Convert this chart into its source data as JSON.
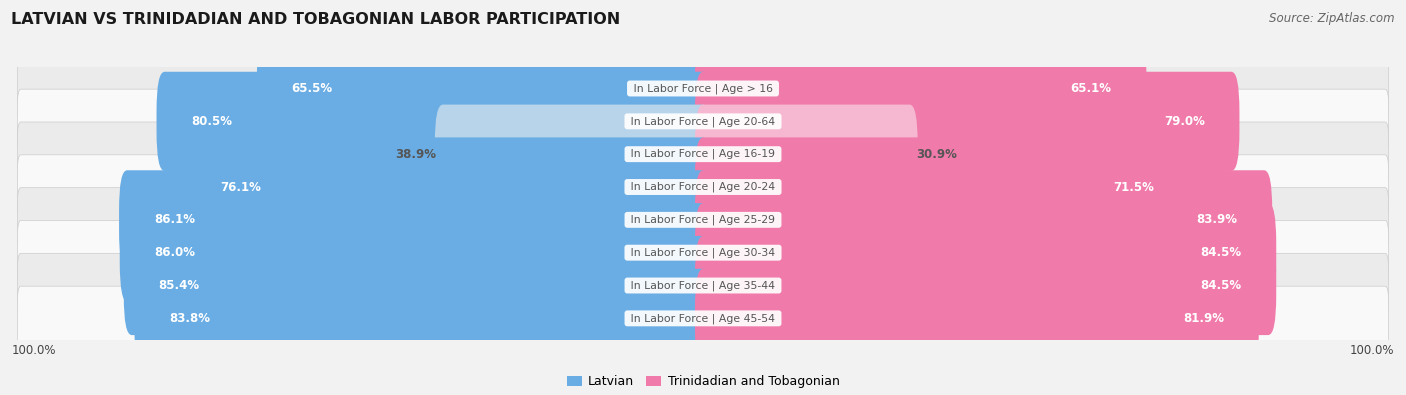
{
  "title": "LATVIAN VS TRINIDADIAN AND TOBAGONIAN LABOR PARTICIPATION",
  "source": "Source: ZipAtlas.com",
  "categories": [
    "In Labor Force | Age > 16",
    "In Labor Force | Age 20-64",
    "In Labor Force | Age 16-19",
    "In Labor Force | Age 20-24",
    "In Labor Force | Age 25-29",
    "In Labor Force | Age 30-34",
    "In Labor Force | Age 35-44",
    "In Labor Force | Age 45-54"
  ],
  "latvian": [
    65.5,
    80.5,
    38.9,
    76.1,
    86.1,
    86.0,
    85.4,
    83.8
  ],
  "trinidadian": [
    65.1,
    79.0,
    30.9,
    71.5,
    83.9,
    84.5,
    84.5,
    81.9
  ],
  "latvian_color": "#6aade4",
  "latvian_color_light": "#b8d4ea",
  "trinidadian_color": "#f07aaa",
  "trinidadian_color_light": "#f5b8d0",
  "label_color_white": "#ffffff",
  "label_color_dark": "#555555",
  "bar_height": 0.62,
  "max_val": 100.0,
  "bg_color": "#f2f2f2",
  "row_bg_even": "#ebebeb",
  "row_bg_odd": "#f9f9f9",
  "title_fontsize": 11.5,
  "source_fontsize": 8.5,
  "legend_fontsize": 9,
  "value_fontsize": 8.5,
  "category_fontsize": 7.8,
  "footer_label": "100.0%"
}
